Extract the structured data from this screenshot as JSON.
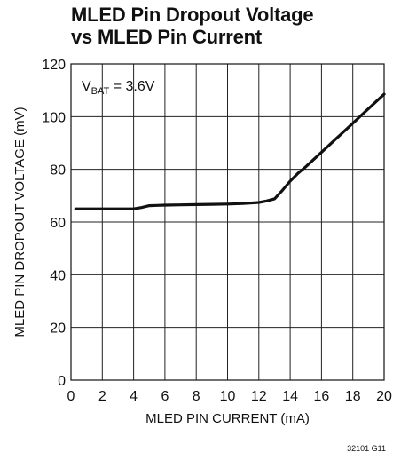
{
  "chart_data": {
    "type": "line",
    "title_line1": "MLED Pin Dropout Voltage",
    "title_line2": "vs MLED Pin Current",
    "xlabel": "MLED PIN CURRENT (mA)",
    "ylabel": "MLED PIN DROPOUT VOLTAGE (mV)",
    "xlim": [
      0,
      20
    ],
    "ylim": [
      0,
      120
    ],
    "x_ticks": [
      0,
      2,
      4,
      6,
      8,
      10,
      12,
      14,
      16,
      18,
      20
    ],
    "y_ticks": [
      0,
      20,
      40,
      60,
      80,
      100,
      120
    ],
    "grid": true,
    "annotation": {
      "main": "V",
      "subscript": "BAT",
      "rest": " = 3.6V"
    },
    "series": [
      {
        "x": [
          0.3,
          1,
          2,
          3,
          4,
          4.5,
          5,
          5.5,
          6,
          7,
          8,
          9,
          10,
          11,
          12,
          12.5,
          13,
          13.5,
          14,
          14.5,
          15,
          16,
          17,
          18,
          19,
          20
        ],
        "y": [
          65,
          65,
          65,
          65,
          65,
          65.5,
          66.2,
          66.3,
          66.4,
          66.5,
          66.6,
          66.7,
          66.8,
          67,
          67.4,
          68,
          68.8,
          72,
          75.5,
          78.5,
          81,
          86.5,
          92,
          97.5,
          103,
          108.5
        ]
      }
    ]
  },
  "figure_id": "32101 G11"
}
